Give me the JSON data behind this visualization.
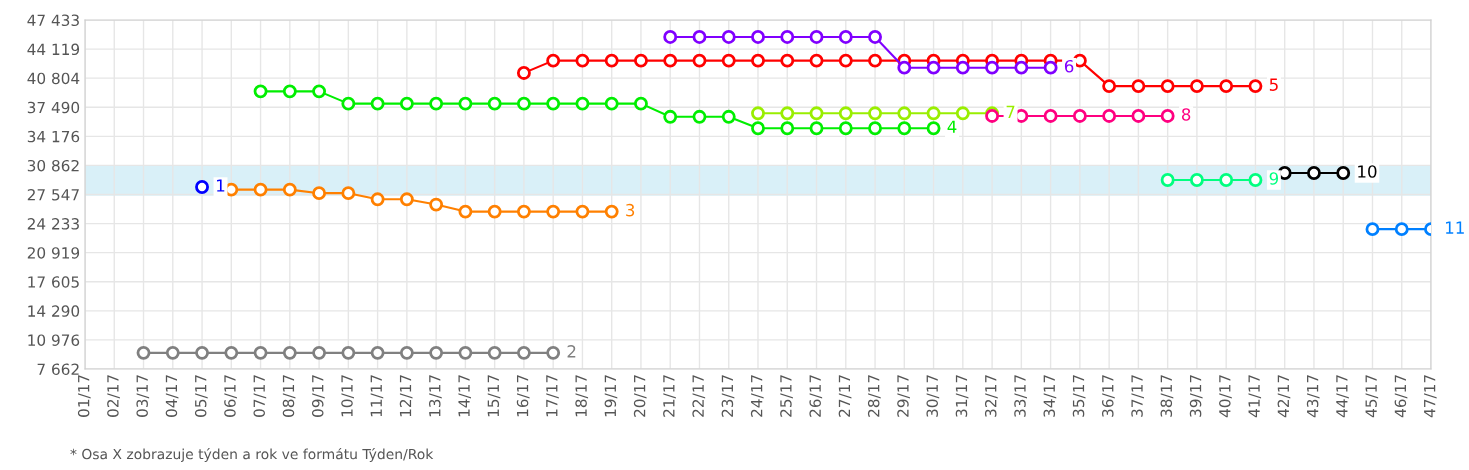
{
  "chart_data": {
    "type": "line",
    "categories": [
      "01/17",
      "02/17",
      "03/17",
      "04/17",
      "05/17",
      "06/17",
      "07/17",
      "08/17",
      "09/17",
      "10/17",
      "11/17",
      "12/17",
      "13/17",
      "14/17",
      "15/17",
      "16/17",
      "17/17",
      "18/17",
      "19/17",
      "20/17",
      "21/17",
      "22/17",
      "23/17",
      "24/17",
      "25/17",
      "26/17",
      "27/17",
      "28/17",
      "29/17",
      "30/17",
      "31/17",
      "32/17",
      "33/17",
      "34/17",
      "35/17",
      "36/17",
      "37/17",
      "38/17",
      "39/17",
      "40/17",
      "41/17",
      "42/17",
      "43/17",
      "44/17",
      "45/17",
      "46/17",
      "47/17"
    ],
    "series": [
      {
        "name": "1",
        "color": "#0000ff",
        "values": [
          null,
          null,
          null,
          null,
          28400,
          null,
          null,
          null,
          null,
          null,
          null,
          null,
          null,
          null,
          null,
          null,
          null,
          null,
          null,
          null,
          null,
          null,
          null,
          null,
          null,
          null,
          null,
          null,
          null,
          null,
          null,
          null,
          null,
          null,
          null,
          null,
          null,
          null,
          null,
          null,
          null,
          null,
          null,
          null,
          null,
          null,
          null
        ]
      },
      {
        "name": "2",
        "color": "#808080",
        "values": [
          null,
          null,
          9500,
          9500,
          9500,
          9500,
          9500,
          9500,
          9500,
          9500,
          9500,
          9500,
          9500,
          9500,
          9500,
          9500,
          9500,
          null,
          null,
          null,
          null,
          null,
          null,
          null,
          null,
          null,
          null,
          null,
          null,
          null,
          null,
          null,
          null,
          null,
          null,
          null,
          null,
          null,
          null,
          null,
          null,
          null,
          null,
          null,
          null,
          null,
          null
        ]
      },
      {
        "name": "3",
        "color": "#ff8000",
        "values": [
          null,
          null,
          null,
          null,
          null,
          28100,
          28100,
          28100,
          27700,
          27700,
          27000,
          27000,
          26400,
          25600,
          25600,
          25600,
          25600,
          25600,
          25600,
          null,
          null,
          null,
          null,
          null,
          null,
          null,
          null,
          null,
          null,
          null,
          null,
          null,
          null,
          null,
          null,
          null,
          null,
          null,
          null,
          null,
          null,
          null,
          null,
          null,
          null,
          null,
          null
        ]
      },
      {
        "name": "4",
        "color": "#00ee00",
        "values": [
          null,
          null,
          null,
          null,
          null,
          null,
          39300,
          39300,
          39300,
          37900,
          37900,
          37900,
          37900,
          37900,
          37900,
          37900,
          37900,
          37900,
          37900,
          37900,
          36400,
          36400,
          36400,
          35100,
          35100,
          35100,
          35100,
          35100,
          35100,
          35100,
          null,
          null,
          null,
          null,
          null,
          null,
          null,
          null,
          null,
          null,
          null,
          null,
          null,
          null,
          null,
          null,
          null
        ]
      },
      {
        "name": "5",
        "color": "#ff0000",
        "values": [
          null,
          null,
          null,
          null,
          null,
          null,
          null,
          null,
          null,
          null,
          null,
          null,
          null,
          null,
          null,
          41400,
          42800,
          42800,
          42800,
          42800,
          42800,
          42800,
          42800,
          42800,
          42800,
          42800,
          42800,
          42800,
          42800,
          42800,
          42800,
          42800,
          42800,
          42800,
          42800,
          39900,
          39900,
          39900,
          39900,
          39900,
          39900,
          null,
          null,
          null,
          null,
          null,
          null
        ]
      },
      {
        "name": "6",
        "color": "#8000ff",
        "values": [
          null,
          null,
          null,
          null,
          null,
          null,
          null,
          null,
          null,
          null,
          null,
          null,
          null,
          null,
          null,
          null,
          null,
          null,
          null,
          null,
          45500,
          45500,
          45500,
          45500,
          45500,
          45500,
          45500,
          45500,
          42000,
          42000,
          42000,
          42000,
          42000,
          42000,
          null,
          null,
          null,
          null,
          null,
          null,
          null,
          null,
          null,
          null,
          null,
          null,
          null
        ]
      },
      {
        "name": "7",
        "color": "#99ee00",
        "values": [
          null,
          null,
          null,
          null,
          null,
          null,
          null,
          null,
          null,
          null,
          null,
          null,
          null,
          null,
          null,
          null,
          null,
          null,
          null,
          null,
          null,
          null,
          null,
          36800,
          36800,
          36800,
          36800,
          36800,
          36800,
          36800,
          36800,
          36800,
          null,
          null,
          null,
          null,
          null,
          null,
          null,
          null,
          null,
          null,
          null,
          null,
          null,
          null,
          null
        ]
      },
      {
        "name": "8",
        "color": "#ff0080",
        "values": [
          null,
          null,
          null,
          null,
          null,
          null,
          null,
          null,
          null,
          null,
          null,
          null,
          null,
          null,
          null,
          null,
          null,
          null,
          null,
          null,
          null,
          null,
          null,
          null,
          null,
          null,
          null,
          null,
          null,
          null,
          null,
          36500,
          36500,
          36500,
          36500,
          36500,
          36500,
          36500,
          null,
          null,
          null,
          null,
          null,
          null,
          null,
          null,
          null
        ]
      },
      {
        "name": "9",
        "color": "#00ff80",
        "values": [
          null,
          null,
          null,
          null,
          null,
          null,
          null,
          null,
          null,
          null,
          null,
          null,
          null,
          null,
          null,
          null,
          null,
          null,
          null,
          null,
          null,
          null,
          null,
          null,
          null,
          null,
          null,
          null,
          null,
          null,
          null,
          null,
          null,
          null,
          null,
          null,
          null,
          29200,
          29200,
          29200,
          29200,
          null,
          null,
          null,
          null,
          null,
          null
        ]
      },
      {
        "name": "10",
        "color": "#000000",
        "values": [
          null,
          null,
          null,
          null,
          null,
          null,
          null,
          null,
          null,
          null,
          null,
          null,
          null,
          null,
          null,
          null,
          null,
          null,
          null,
          null,
          null,
          null,
          null,
          null,
          null,
          null,
          null,
          null,
          null,
          null,
          null,
          null,
          null,
          null,
          null,
          null,
          null,
          null,
          null,
          null,
          null,
          30000,
          30000,
          30000,
          null,
          null,
          null
        ]
      },
      {
        "name": "11",
        "color": "#0080ff",
        "values": [
          null,
          null,
          null,
          null,
          null,
          null,
          null,
          null,
          null,
          null,
          null,
          null,
          null,
          null,
          null,
          null,
          null,
          null,
          null,
          null,
          null,
          null,
          null,
          null,
          null,
          null,
          null,
          null,
          null,
          null,
          null,
          null,
          null,
          null,
          null,
          null,
          null,
          null,
          null,
          null,
          null,
          null,
          null,
          null,
          23600,
          23600,
          23600
        ]
      }
    ],
    "ylim": [
      7662,
      47433
    ],
    "yticks": [
      {
        "value": 7662,
        "label": "7 662"
      },
      {
        "value": 10976,
        "label": "10 976"
      },
      {
        "value": 14290,
        "label": "14 290"
      },
      {
        "value": 17605,
        "label": "17 605"
      },
      {
        "value": 20919,
        "label": "20 919"
      },
      {
        "value": 24233,
        "label": "24 233"
      },
      {
        "value": 27547,
        "label": "27 547"
      },
      {
        "value": 30862,
        "label": "30 862"
      },
      {
        "value": 34176,
        "label": "34 176"
      },
      {
        "value": 37490,
        "label": "37 490"
      },
      {
        "value": 40804,
        "label": "40 804"
      },
      {
        "value": 44119,
        "label": "44 119"
      },
      {
        "value": 47433,
        "label": "47 433"
      }
    ],
    "bands": [
      {
        "axis": "y",
        "from": 27400,
        "to": 30862,
        "color": "#d9f0f8"
      }
    ],
    "grid": true,
    "marker": "circle",
    "line_style": "solid",
    "annotations": [
      "* Osa X zobrazuje týden a rok ve formátu Týden/Rok"
    ]
  }
}
